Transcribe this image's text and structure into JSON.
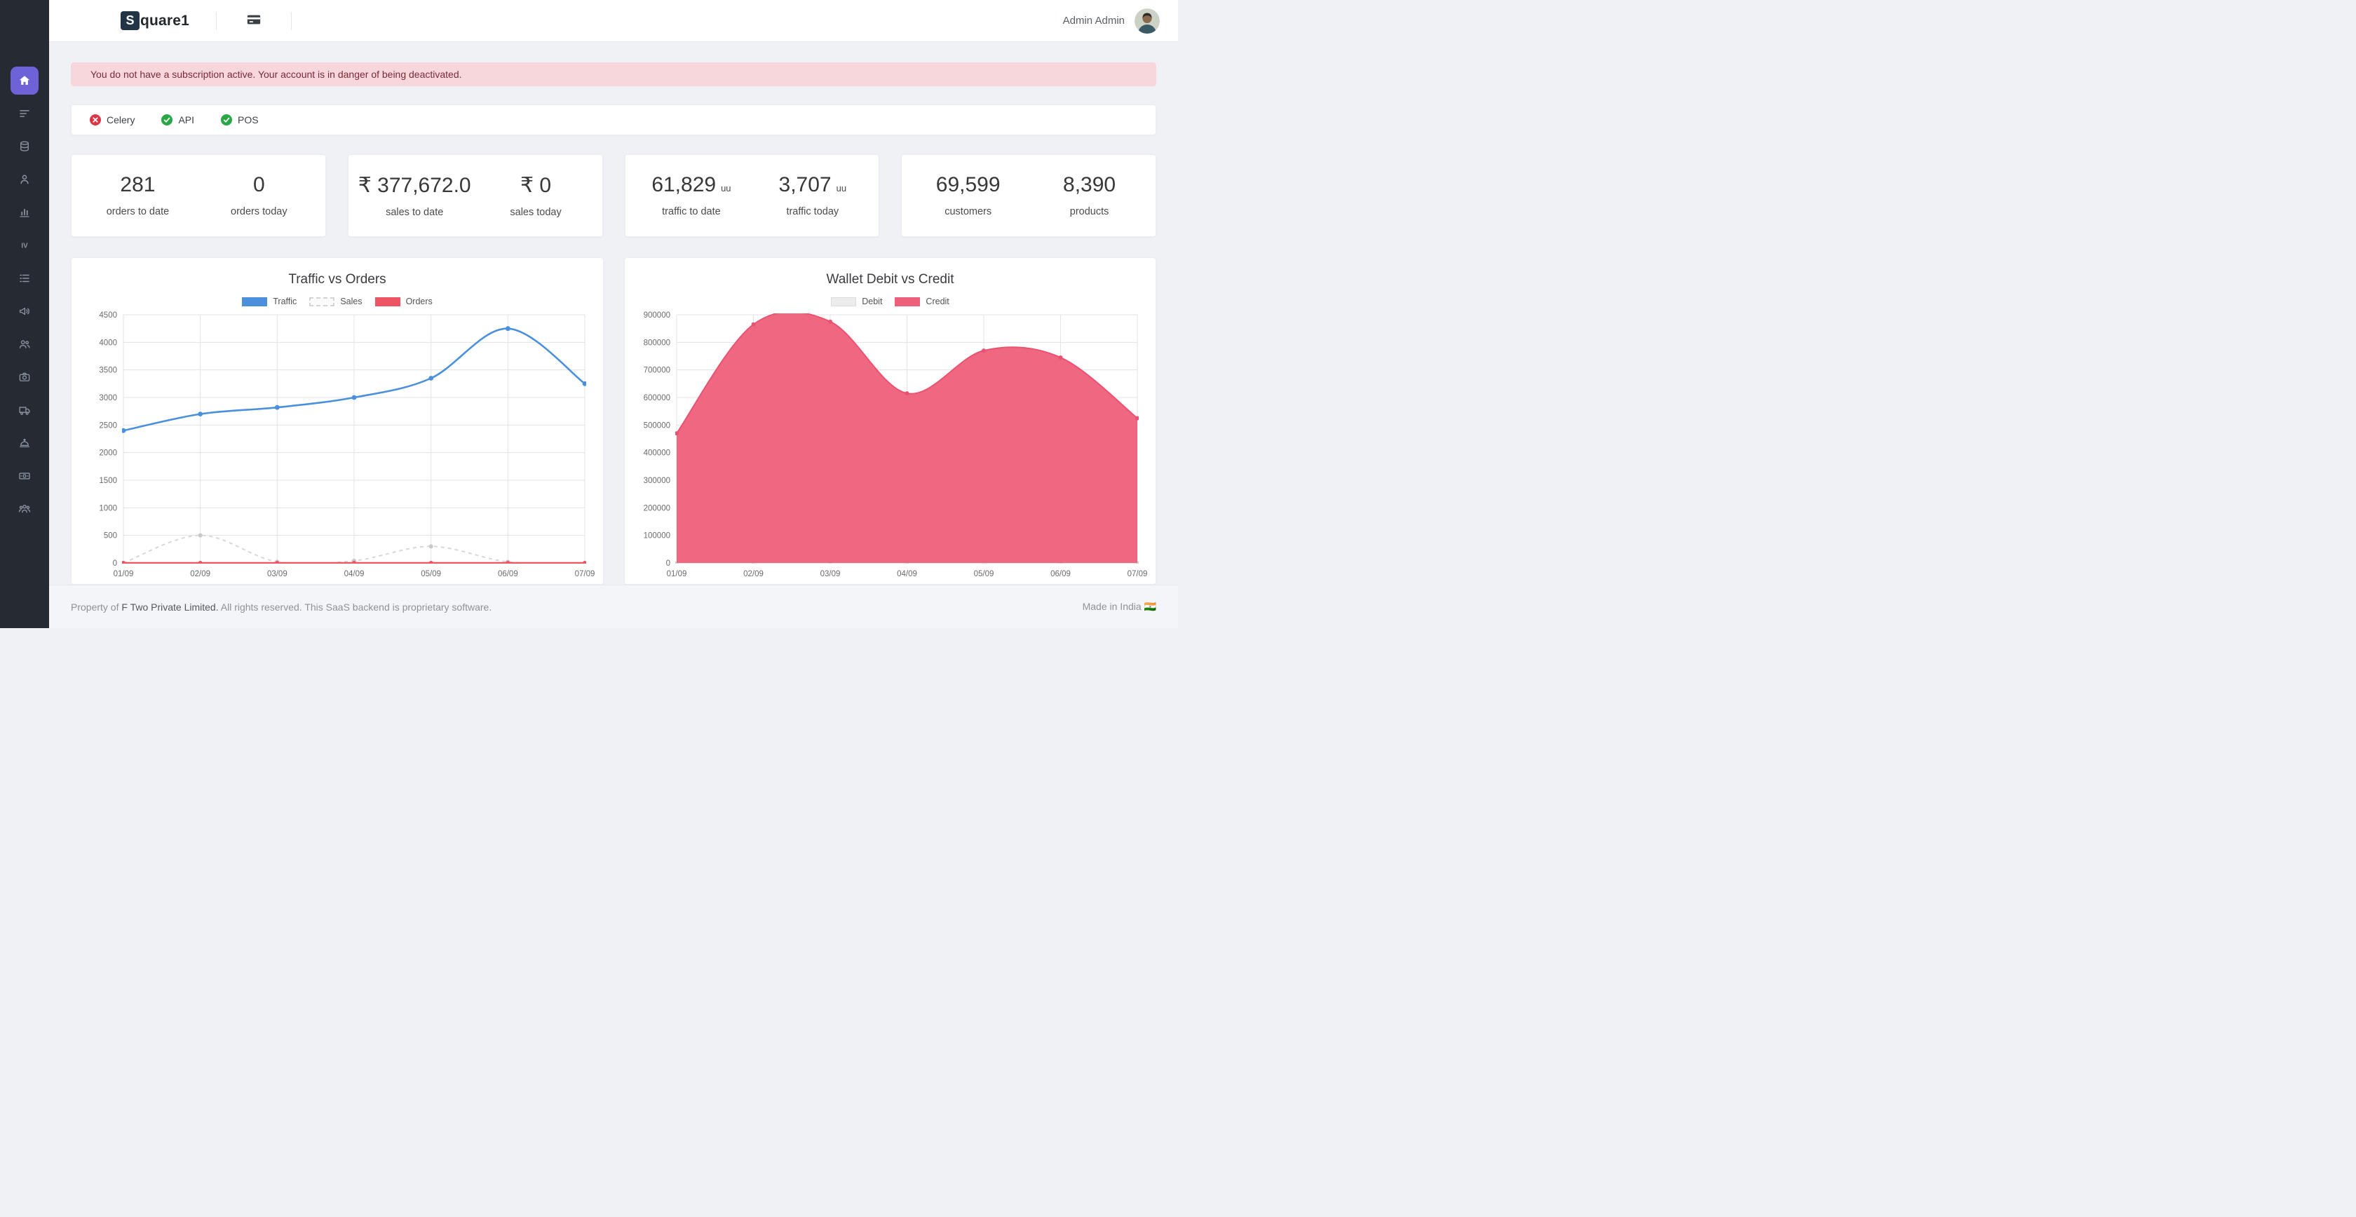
{
  "colors": {
    "sidebar_bg": "#262b33",
    "sidebar_active": "#6d62d8",
    "page_bg": "#f0f1f4",
    "alert_bg": "#f8d7dc",
    "alert_text": "#7b2a35",
    "status_up": "#28a745",
    "status_down": "#dc3545",
    "traffic_blue": "#4a90dd",
    "sales_gray": "#d8d8d8",
    "orders_red": "#ed5565",
    "credit_pink": "#ef617c",
    "debit_gray": "#ececec"
  },
  "header": {
    "brand_letter": "S",
    "brand_rest": "quare1",
    "user_name": "Admin Admin"
  },
  "sidebar": {
    "items": [
      {
        "id": "dashboard",
        "icon": "home-icon",
        "active": true
      },
      {
        "id": "orders",
        "icon": "list-icon",
        "active": false
      },
      {
        "id": "inventory",
        "icon": "database-icon",
        "active": false
      },
      {
        "id": "customers",
        "icon": "user-icon",
        "active": false
      },
      {
        "id": "reports",
        "icon": "bar-chart-icon",
        "active": false
      },
      {
        "id": "invoices",
        "icon": "iv-icon",
        "active": false
      },
      {
        "id": "catalog",
        "icon": "catalog-icon",
        "active": false
      },
      {
        "id": "announcements",
        "icon": "megaphone-icon",
        "active": false
      },
      {
        "id": "staff",
        "icon": "users-icon",
        "active": false
      },
      {
        "id": "media",
        "icon": "camera-icon",
        "active": false
      },
      {
        "id": "shipping",
        "icon": "truck-icon",
        "active": false
      },
      {
        "id": "services",
        "icon": "bell-icon",
        "active": false
      },
      {
        "id": "payments",
        "icon": "cash-icon",
        "active": false
      },
      {
        "id": "teams",
        "icon": "group-icon",
        "active": false
      }
    ]
  },
  "alert": {
    "message": "You do not have a subscription active. Your account is in danger of being deactivated."
  },
  "services": [
    {
      "label": "Celery",
      "status": "down"
    },
    {
      "label": "API",
      "status": "up"
    },
    {
      "label": "POS",
      "status": "up"
    }
  ],
  "stats": {
    "cards": [
      {
        "items": [
          {
            "value": "281",
            "label": "orders to date"
          },
          {
            "value": "0",
            "label": "orders today"
          }
        ]
      },
      {
        "items": [
          {
            "value": "₹ 377,672.0",
            "label": "sales to date"
          },
          {
            "value": "₹ 0",
            "label": "sales today"
          }
        ]
      },
      {
        "items": [
          {
            "value": "61,829",
            "suffix": "uu",
            "label": "traffic to date"
          },
          {
            "value": "3,707",
            "suffix": "uu",
            "label": "traffic today"
          }
        ]
      },
      {
        "items": [
          {
            "value": "69,599",
            "label": "customers"
          },
          {
            "value": "8,390",
            "label": "products"
          }
        ]
      }
    ]
  },
  "chart_data": [
    {
      "type": "line",
      "title": "Traffic vs Orders",
      "x": [
        "01/09",
        "02/09",
        "03/09",
        "04/09",
        "05/09",
        "06/09",
        "07/09"
      ],
      "ylim": [
        0,
        4500
      ],
      "ytick": 500,
      "grid": true,
      "legend_position": "top",
      "series": [
        {
          "name": "Traffic",
          "color": "#4a90dd",
          "width": 2.6,
          "point_radius": 3.4,
          "swatch_bg": "#4a90dd",
          "values": [
            2400,
            2700,
            2820,
            3000,
            3350,
            4250,
            3250
          ]
        },
        {
          "name": "Sales",
          "color": "#d8d8d8",
          "dash": "5 5",
          "width": 2,
          "point_radius": 3,
          "point_color": "#c9c9c9",
          "swatch_bg": "#fbfbfb",
          "swatch_border": "2px dashed #d4d4d4",
          "values": [
            0,
            500,
            20,
            40,
            300,
            20,
            0
          ]
        },
        {
          "name": "Orders",
          "color": "#ed5565",
          "width": 2.4,
          "point_radius": 3,
          "swatch_bg": "#ed5565",
          "values": [
            0,
            0,
            0,
            0,
            0,
            0,
            0
          ]
        }
      ]
    },
    {
      "type": "area",
      "title": "Wallet Debit vs Credit",
      "x": [
        "01/09",
        "02/09",
        "03/09",
        "04/09",
        "05/09",
        "06/09",
        "07/09"
      ],
      "ylim": [
        0,
        900000
      ],
      "ytick": 100000,
      "grid": true,
      "legend_position": "top",
      "series": [
        {
          "name": "Debit",
          "color": "#d9d9d9",
          "width": 1.6,
          "point_radius": 2.5,
          "point_color": "#cfcfcf",
          "swatch_bg": "#ececec",
          "swatch_border": "1px solid #dcdcdc",
          "values": [
            0,
            0,
            0,
            0,
            0,
            0,
            0
          ]
        },
        {
          "name": "Credit",
          "color": "#e9536f",
          "fill": "#ef617c",
          "fill_opacity": 0.96,
          "width": 2,
          "point_radius": 3,
          "swatch_bg": "#ed5f7b",
          "values": [
            470000,
            865000,
            875000,
            615000,
            770000,
            745000,
            525000
          ]
        }
      ]
    }
  ],
  "footer": {
    "prefix": "Property of",
    "company": "F Two Private Limited.",
    "rest": "All rights reserved. This SaaS backend is proprietary software.",
    "made_in": "Made in India 🇮🇳"
  }
}
